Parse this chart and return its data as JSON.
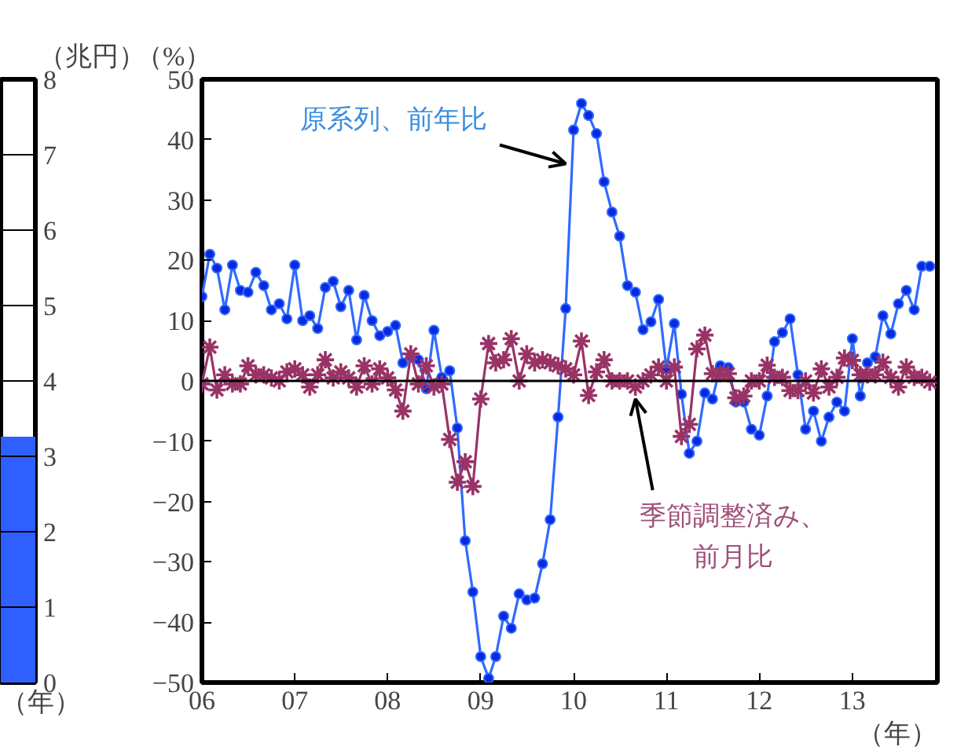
{
  "chart_data": [
    {
      "type": "bar",
      "categories": [
        null
      ],
      "ylabel": "（兆円）",
      "xlabel": "（年）",
      "ylim": [
        0,
        8
      ],
      "yticks": [
        0,
        1,
        2,
        3,
        4,
        5,
        6,
        7,
        8
      ],
      "grid": "y",
      "tick_labels": "y",
      "relative": false,
      "series": [
        {
          "type": "bar",
          "color": "#2f5fff",
          "values": [
            3.25
          ]
        }
      ]
    },
    {
      "type": "line",
      "ylabel": "（%）",
      "xlabel": "（年）",
      "ylim": [
        -50,
        50
      ],
      "yticks": [
        -50,
        -40,
        -30,
        -20,
        -10,
        0,
        10,
        20,
        30,
        40,
        50
      ],
      "xlim": [
        "2006-01",
        "2013-12"
      ],
      "xticks": [
        {
          "value": "2006",
          "label": "06"
        },
        {
          "value": "2007",
          "label": "07"
        },
        {
          "value": "2008",
          "label": "08"
        },
        {
          "value": "2009",
          "label": "09"
        },
        {
          "value": "2010",
          "label": "10"
        },
        {
          "value": "2011",
          "label": "11"
        },
        {
          "value": "2012",
          "label": "12"
        },
        {
          "value": "2013",
          "label": "13"
        }
      ],
      "grid": false,
      "line_style": "solid",
      "ref_lines": [
        {
          "axis": "y",
          "value": 0,
          "color": "#000000"
        }
      ],
      "annotations": [
        {
          "text": "原系列、前年比",
          "x": "2009-12",
          "y": 36
        },
        {
          "text": "季節調整済み、前月比",
          "x": "2010-09",
          "y": -3
        }
      ],
      "x": [
        "2006-01",
        "2006-02",
        "2006-03",
        "2006-04",
        "2006-05",
        "2006-06",
        "2006-07",
        "2006-08",
        "2006-09",
        "2006-10",
        "2006-11",
        "2006-12",
        "2007-01",
        "2007-02",
        "2007-03",
        "2007-04",
        "2007-05",
        "2007-06",
        "2007-07",
        "2007-08",
        "2007-09",
        "2007-10",
        "2007-11",
        "2007-12",
        "2008-01",
        "2008-02",
        "2008-03",
        "2008-04",
        "2008-05",
        "2008-06",
        "2008-07",
        "2008-08",
        "2008-09",
        "2008-10",
        "2008-11",
        "2008-12",
        "2009-01",
        "2009-02",
        "2009-03",
        "2009-04",
        "2009-05",
        "2009-06",
        "2009-07",
        "2009-08",
        "2009-09",
        "2009-10",
        "2009-11",
        "2009-12",
        "2010-01",
        "2010-02",
        "2010-03",
        "2010-04",
        "2010-05",
        "2010-06",
        "2010-07",
        "2010-08",
        "2010-09",
        "2010-10",
        "2010-11",
        "2010-12",
        "2011-01",
        "2011-02",
        "2011-03",
        "2011-04",
        "2011-05",
        "2011-06",
        "2011-07",
        "2011-08",
        "2011-09",
        "2011-10",
        "2011-11",
        "2011-12",
        "2012-01",
        "2012-02",
        "2012-03",
        "2012-04",
        "2012-05",
        "2012-06",
        "2012-07",
        "2012-08",
        "2012-09",
        "2012-10",
        "2012-11",
        "2012-12",
        "2013-01",
        "2013-02",
        "2013-03",
        "2013-04",
        "2013-05",
        "2013-06",
        "2013-07",
        "2013-08",
        "2013-09",
        "2013-10",
        "2013-11"
      ],
      "series": [
        {
          "color": "#2f6bff",
          "marker": "circle",
          "values": [
            14,
            21,
            18.7,
            11.8,
            19.2,
            15,
            14.7,
            18,
            15.8,
            11.8,
            12.8,
            10.3,
            19.2,
            10,
            10.8,
            8.7,
            15.5,
            16.5,
            12.3,
            15,
            6.8,
            14.2,
            10,
            7.5,
            8.2,
            9.2,
            3,
            4,
            3.5,
            -1.3,
            8.4,
            0.6,
            1.7,
            -7.8,
            -26.5,
            -35,
            -45.7,
            -49.3,
            -45.7,
            -39,
            -41,
            -35.3,
            -36.3,
            -36,
            -30.3,
            -23,
            -6,
            12,
            41.6,
            46,
            44,
            41,
            33,
            28,
            24,
            15.8,
            14.7,
            8.5,
            9.8,
            13.5,
            2,
            9.5,
            -2.2,
            -12,
            -10,
            -2,
            -3,
            2.5,
            2.2,
            -3.5,
            -3.5,
            -8,
            -9,
            -2.5,
            6.5,
            8,
            10.3,
            1,
            -8,
            -5,
            -10,
            -6,
            -3.5,
            -5,
            7,
            -2.5,
            3,
            4,
            10.8,
            7.8,
            12.8,
            15,
            11.8,
            19,
            19
          ]
        },
        {
          "color": "#993366",
          "marker": "cross",
          "values": [
            -0.5,
            5.6,
            -1.5,
            1,
            -0.5,
            -0.5,
            2.5,
            1,
            1,
            0.5,
            0,
            1.5,
            2,
            1,
            -1,
            1,
            3.5,
            0.5,
            1.5,
            0.5,
            -1,
            2.5,
            -0.5,
            2,
            0.5,
            -1.5,
            -5,
            4.5,
            -0.5,
            2.5,
            -1,
            -0.5,
            -9.7,
            -16.8,
            -13.4,
            -17.5,
            -3,
            6.2,
            3,
            3.5,
            7,
            0,
            4.5,
            3,
            3.5,
            3,
            2.5,
            2,
            1,
            6.6,
            -2.4,
            1.5,
            3.5,
            0,
            0,
            0,
            -1,
            0,
            1,
            2.3,
            0,
            2.3,
            -9.2,
            -7.2,
            5.3,
            7.6,
            1.2,
            1.2,
            1.2,
            -2.8,
            -2.5,
            0,
            0,
            2.6,
            0.6,
            0.6,
            -1.6,
            -1.6,
            0,
            -2,
            2,
            -1,
            0.6,
            3.8,
            3.4,
            1,
            1,
            1,
            3.1,
            0.6,
            -1,
            2.3,
            0.6,
            0.6,
            -0.2
          ]
        }
      ]
    }
  ]
}
